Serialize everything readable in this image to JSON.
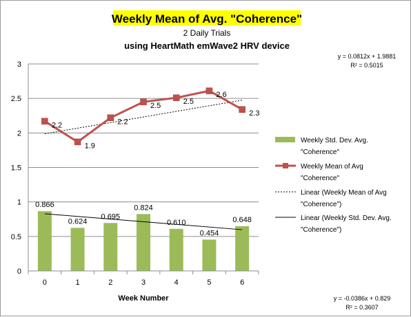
{
  "chart_data": {
    "type": "bar+line",
    "title": "Weekly Mean of Avg. \"Coherence\"",
    "subtitle_1": "2 Daily Trials",
    "subtitle_2": "using HeartMath emWave2 HRV device",
    "xlabel": "Week Number",
    "ylabel": "",
    "categories": [
      "0",
      "1",
      "2",
      "3",
      "4",
      "5",
      "6"
    ],
    "ylim": [
      0,
      3
    ],
    "yticks": [
      "0",
      "0.5",
      "1",
      "1.5",
      "2",
      "2.5",
      "3"
    ],
    "grid": true,
    "legend_position": "right",
    "series": [
      {
        "name": "Weekly Std. Dev. Avg. \"Coherence\"",
        "legend_lines": [
          "Weekly Std. Dev. Avg.",
          "\"Coherence\""
        ],
        "kind": "bar",
        "color": "#9bbb59",
        "values": [
          0.866,
          0.624,
          0.695,
          0.824,
          0.61,
          0.454,
          0.648
        ],
        "labels": [
          "0.866",
          "0.624",
          "0.695",
          "0.824",
          "0.610",
          "0.454",
          "0.648"
        ]
      },
      {
        "name": "Weekly Mean of Avg \"Coherence\"",
        "legend_lines": [
          "Weekly Mean of Avg",
          "\"Coherence\""
        ],
        "kind": "line",
        "color": "#c0504d",
        "values": [
          2.17,
          1.87,
          2.22,
          2.45,
          2.51,
          2.61,
          2.34
        ],
        "labels": [
          "2.2",
          "1.9",
          "2.2",
          "2.5",
          "2.5",
          "2.6",
          "2.3"
        ]
      }
    ],
    "trendlines": [
      {
        "name": "Linear (Weekly Mean of Avg \"Coherence\")",
        "legend_lines": [
          "Linear (Weekly Mean of Avg",
          "\"Coherence\")"
        ],
        "style": "dotted",
        "slope": 0.0812,
        "intercept": 1.9881,
        "equation": "y = 0.0812x + 1.9881",
        "r2": "R² = 0.5015"
      },
      {
        "name": "Linear (Weekly Std. Dev. Avg. \"Coherence\")",
        "legend_lines": [
          "Linear (Weekly Std. Dev. Avg.",
          "\"Coherence\")"
        ],
        "style": "solid",
        "slope": -0.0386,
        "intercept": 0.829,
        "equation": "y = -0.0386x + 0.829",
        "r2": "R² = 0.3607"
      }
    ],
    "highlight_color": "#ffff00"
  }
}
